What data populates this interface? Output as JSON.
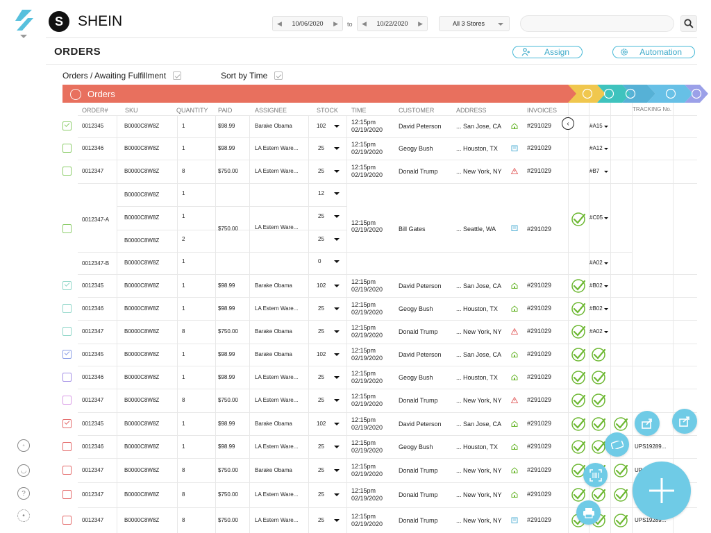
{
  "brand": {
    "name": "SHEIN",
    "logo_letter": "S"
  },
  "filters": {
    "date_from": "10/06/2020",
    "date_sep": "to",
    "date_to": "10/22/2020",
    "stores": "All 3 Stores",
    "search_placeholder": ""
  },
  "page": {
    "title": "ORDERS",
    "assign_label": "Assign",
    "automation_label": "Automation"
  },
  "toolbar": {
    "breadcrumb": "Orders / Awaiting Fulfillment",
    "sort_label": "Sort by Time"
  },
  "stage": {
    "label": "Orders",
    "colors": [
      "#e8705e",
      "#f0c74e",
      "#3fc3be",
      "#56b1d6",
      "#67c0e6",
      "#9ba0e8"
    ]
  },
  "columns": [
    "ORDER#",
    "SKU",
    "QUANTITY",
    "PAID",
    "ASSIGNEE",
    "STOCK",
    "TIME",
    "CUSTOMER",
    "ADDRESS",
    "INVOICES",
    "TRACKING No."
  ],
  "colors": {
    "accent": "#46b8d6",
    "ok_green": "#6db832",
    "warn_red": "#e46b6b"
  },
  "rows": [
    {
      "check": "checked",
      "color": "#8ccd6a",
      "order": "0012345",
      "sku": "B0000C8W8Z",
      "qty": "1",
      "paid": "$98.99",
      "assignee": "Barake Obama",
      "stock": "102",
      "time1": "12:15pm",
      "time2": "02/19/2020",
      "customer": "David Peterson",
      "address": "... San Jose, CA",
      "addr_icon": "home-green",
      "invoice": "#291029",
      "checks": 0,
      "tag": "#A15",
      "tracking": ""
    },
    {
      "check": "",
      "color": "#8ccd6a",
      "order": "0012346",
      "sku": "B0000C8W8Z",
      "qty": "1",
      "paid": "$98.99",
      "assignee": "LA Estern Ware...",
      "stock": "25",
      "time1": "12:15pm",
      "time2": "02/19/2020",
      "customer": "Geogy Bush",
      "address": "... Houston, TX",
      "addr_icon": "building-blue",
      "invoice": "#291029",
      "checks": 0,
      "tag": "#A12",
      "tracking": ""
    },
    {
      "check": "",
      "color": "#8ccd6a",
      "order": "0012347",
      "sku": "B0000C8W8Z",
      "qty": "8",
      "paid": "$750.00",
      "assignee": "LA Estern Ware...",
      "stock": "25",
      "time1": "12:15pm",
      "time2": "02/19/2020",
      "customer": "Donald Trump",
      "address": "... New York, NY",
      "addr_icon": "warn-red",
      "invoice": "#291029",
      "checks": 0,
      "tag": "#B7",
      "tracking": ""
    }
  ],
  "group": {
    "order_a": "0012347-A",
    "order_b": "0012347-B",
    "paid": "$750.00",
    "assignee": "LA Estern Ware...",
    "time1": "12:15pm",
    "time2": "02/19/2020",
    "customer": "Bill Gates",
    "address": "... Seattle, WA",
    "invoice": "#291029",
    "tag_a": "#C05",
    "tag_b": "#A02",
    "lines": [
      {
        "sku": "B0000C8W8Z",
        "qty": "1",
        "stock": "12"
      },
      {
        "sku": "B0000C8W8Z",
        "qty": "1",
        "stock": "25"
      },
      {
        "sku": "B0000C8W8Z",
        "qty": "2",
        "stock": "25"
      },
      {
        "sku": "B0000C8W8Z",
        "qty": "1",
        "stock": "0"
      }
    ]
  },
  "rows2": [
    {
      "check": "checked",
      "color": "#8fd6c8",
      "order": "0012345",
      "sku": "B0000C8W8Z",
      "qty": "1",
      "paid": "$98.99",
      "assignee": "Barake Obama",
      "stock": "102",
      "time1": "12:15pm",
      "time2": "02/19/2020",
      "customer": "David Peterson",
      "address": "... San Jose, CA",
      "addr_icon": "home-green",
      "invoice": "#291029",
      "checks": 1,
      "tag": "#B02",
      "tracking": ""
    },
    {
      "check": "",
      "color": "#8fd6c8",
      "order": "0012346",
      "sku": "B0000C8W8Z",
      "qty": "1",
      "paid": "$98.99",
      "assignee": "LA Estern Ware...",
      "stock": "25",
      "time1": "12:15pm",
      "time2": "02/19/2020",
      "customer": "Geogy Bush",
      "address": "... Houston, TX",
      "addr_icon": "home-green",
      "invoice": "#291029",
      "checks": 1,
      "tag": "#B02",
      "tracking": ""
    },
    {
      "check": "",
      "color": "#8fd6c8",
      "order": "0012347",
      "sku": "B0000C8W8Z",
      "qty": "8",
      "paid": "$750.00",
      "assignee": "Barake Obama",
      "stock": "25",
      "time1": "12:15pm",
      "time2": "02/19/2020",
      "customer": "Donald Trump",
      "address": "... New York, NY",
      "addr_icon": "warn-red",
      "invoice": "#291029",
      "checks": 1,
      "tag": "#A02",
      "tracking": ""
    },
    {
      "check": "checked",
      "color": "#8a9ee6",
      "order": "0012345",
      "sku": "B0000C8W8Z",
      "qty": "1",
      "paid": "$98.99",
      "assignee": "Barake Obama",
      "stock": "102",
      "time1": "12:15pm",
      "time2": "02/19/2020",
      "customer": "David Peterson",
      "address": "... San Jose, CA",
      "addr_icon": "home-green",
      "invoice": "#291029",
      "checks": 2,
      "tag": "",
      "tracking": ""
    },
    {
      "check": "",
      "color": "#a38fe6",
      "order": "0012346",
      "sku": "B0000C8W8Z",
      "qty": "1",
      "paid": "$98.99",
      "assignee": "LA Estern Ware...",
      "stock": "25",
      "time1": "12:15pm",
      "time2": "02/19/2020",
      "customer": "Geogy Bush",
      "address": "... Houston, TX",
      "addr_icon": "home-green",
      "invoice": "#291029",
      "checks": 2,
      "tag": "",
      "tracking": ""
    },
    {
      "check": "",
      "color": "#d99be6",
      "order": "0012347",
      "sku": "B0000C8W8Z",
      "qty": "8",
      "paid": "$750.00",
      "assignee": "LA Estern Ware...",
      "stock": "25",
      "time1": "12:15pm",
      "time2": "02/19/2020",
      "customer": "Donald Trump",
      "address": "... New York, NY",
      "addr_icon": "warn-red",
      "invoice": "#291029",
      "checks": 2,
      "tag": "",
      "tracking": ""
    },
    {
      "check": "checked",
      "color": "#e46b6b",
      "order": "0012345",
      "sku": "B0000C8W8Z",
      "qty": "1",
      "paid": "$98.99",
      "assignee": "Barake Obama",
      "stock": "102",
      "time1": "12:15pm",
      "time2": "02/19/2020",
      "customer": "David Peterson",
      "address": "... San Jose, CA",
      "addr_icon": "home-green",
      "invoice": "#291029",
      "checks": 3,
      "tag": "",
      "tracking": ""
    },
    {
      "check": "",
      "color": "#e46b6b",
      "order": "0012346",
      "sku": "B0000C8W8Z",
      "qty": "1",
      "paid": "$98.99",
      "assignee": "LA Estern Ware...",
      "stock": "25",
      "time1": "12:15pm",
      "time2": "02/19/2020",
      "customer": "Geogy Bush",
      "address": "... Houston, TX",
      "addr_icon": "home-green",
      "invoice": "#291029",
      "checks": 3,
      "tag": "",
      "tracking": "UPS19289..."
    },
    {
      "check": "",
      "color": "#e46b6b",
      "order": "0012347",
      "sku": "B0000C8W8Z",
      "qty": "8",
      "paid": "$750.00",
      "assignee": "Barake Obama",
      "stock": "25",
      "time1": "12:15pm",
      "time2": "02/19/2020",
      "customer": "Donald Trump",
      "address": "... New York, NY",
      "addr_icon": "home-green",
      "invoice": "#291029",
      "checks": 3,
      "tag": "",
      "tracking": "UP"
    },
    {
      "check": "",
      "color": "#e46b6b",
      "order": "0012347",
      "sku": "B0000C8W8Z",
      "qty": "8",
      "paid": "$750.00",
      "assignee": "LA Estern Ware...",
      "stock": "25",
      "time1": "12:15pm",
      "time2": "02/19/2020",
      "customer": "Donald Trump",
      "address": "... New York, NY",
      "addr_icon": "home-green",
      "invoice": "#291029",
      "checks": 3,
      "tag": "",
      "tracking": ""
    },
    {
      "check": "",
      "color": "#e46b6b",
      "order": "0012347",
      "sku": "B0000C8W8Z",
      "qty": "8",
      "paid": "$750.00",
      "assignee": "LA Estern Ware...",
      "stock": "25",
      "time1": "12:15pm",
      "time2": "02/19/2020",
      "customer": "Donald Trump",
      "address": "... New York, NY",
      "addr_icon": "building-blue",
      "invoice": "#291029",
      "checks": 3,
      "tag": "",
      "tracking": "UPS19289..."
    }
  ],
  "rail_icons": [
    "palette-icon",
    "user-icon",
    "help-icon",
    "settings-icon"
  ]
}
